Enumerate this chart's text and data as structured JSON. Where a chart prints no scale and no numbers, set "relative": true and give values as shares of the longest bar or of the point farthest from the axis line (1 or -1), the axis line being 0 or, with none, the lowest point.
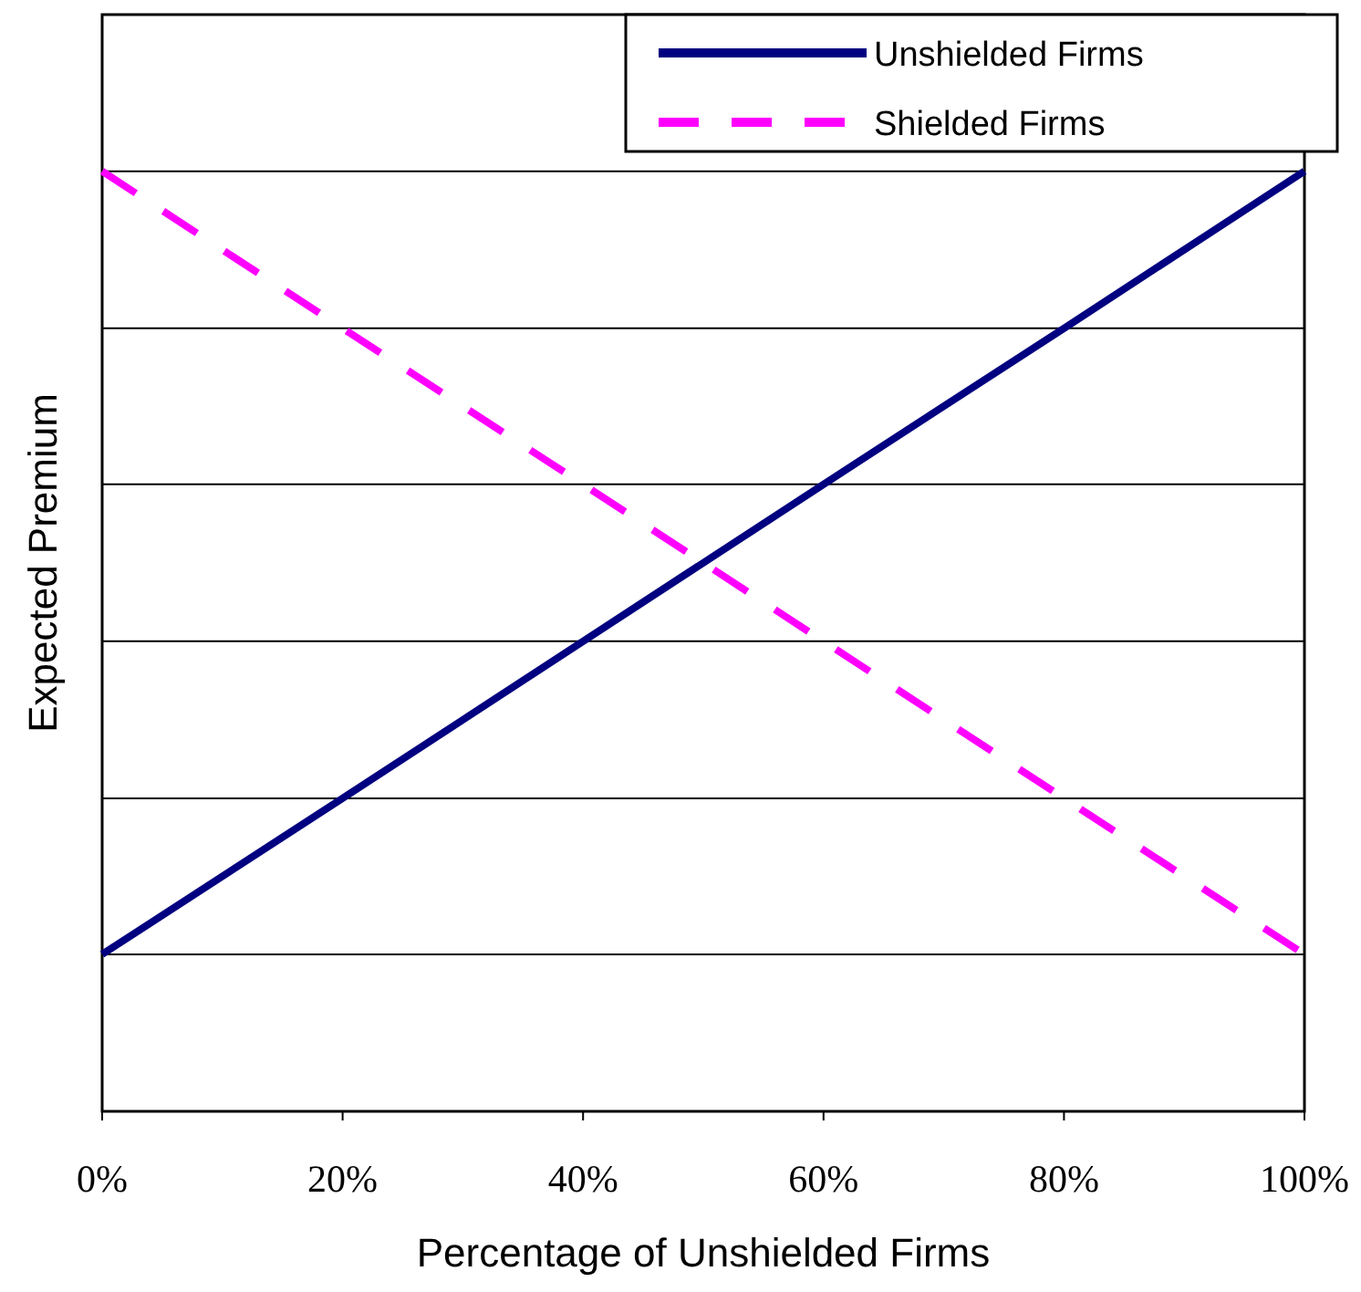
{
  "chart_data": {
    "type": "line",
    "xlabel": "Percentage of Unshielded Firms",
    "ylabel": "Expected Premium",
    "relative": true,
    "x": [
      0,
      20,
      40,
      60,
      80,
      100
    ],
    "xlim": [
      0,
      100
    ],
    "xticks": [
      {
        "value": 0,
        "label": "0%"
      },
      {
        "value": 20,
        "label": "20%"
      },
      {
        "value": 40,
        "label": "40%"
      },
      {
        "value": 60,
        "label": "60%"
      },
      {
        "value": 80,
        "label": "80%"
      },
      {
        "value": 100,
        "label": "100%"
      }
    ],
    "series": [
      {
        "name": "Unshielded Firms",
        "color": "#000080",
        "line_style": "solid",
        "values": [
          0.167,
          0.333,
          0.5,
          0.667,
          0.833,
          1
        ]
      },
      {
        "name": "Shielded Firms",
        "color": "#ff00ff",
        "line_style": "dashed",
        "values": [
          1,
          0.833,
          0.667,
          0.5,
          0.333,
          0.167
        ]
      }
    ],
    "grid": "y",
    "legend": "top right"
  }
}
